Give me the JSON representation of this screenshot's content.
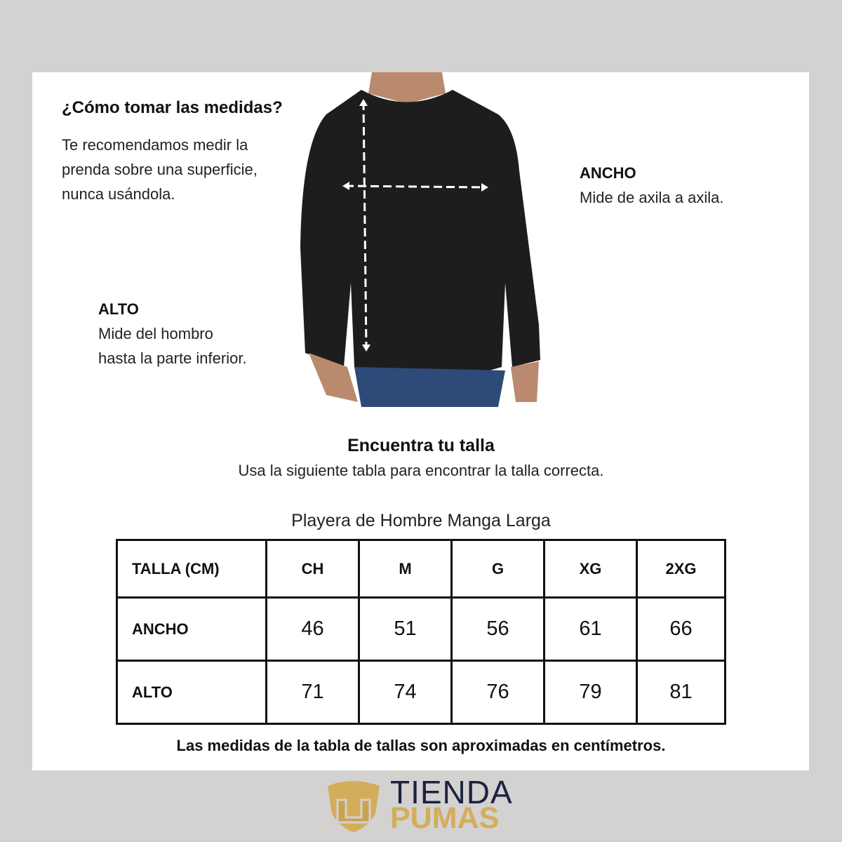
{
  "howto": {
    "title": "¿Cómo tomar las medidas?",
    "lines": [
      "Te recomendamos medir la",
      "prenda sobre una superficie,",
      "nunca usándola."
    ]
  },
  "ancho": {
    "label": "ANCHO",
    "desc": "Mide de axila a axila."
  },
  "alto": {
    "label": "ALTO",
    "lines": [
      "Mide del hombro",
      "hasta la parte inferior."
    ]
  },
  "find": {
    "title": "Encuentra tu talla",
    "subtitle": "Usa la siguiente tabla para encontrar la talla correcta."
  },
  "table": {
    "caption": "Playera de Hombre Manga Larga",
    "headers": [
      "TALLA (CM)",
      "CH",
      "M",
      "G",
      "XG",
      "2XG"
    ],
    "rows": [
      {
        "label": "ANCHO",
        "values": [
          "46",
          "51",
          "56",
          "61",
          "66"
        ]
      },
      {
        "label": "ALTO",
        "values": [
          "71",
          "74",
          "76",
          "79",
          "81"
        ]
      }
    ]
  },
  "note": "Las medidas de la tabla de tallas son aproximadas en centímetros.",
  "logo": {
    "line1": "TIENDA",
    "line2": "PUMAS",
    "navy": "#1b2340",
    "gold": "#d4ad5c"
  }
}
